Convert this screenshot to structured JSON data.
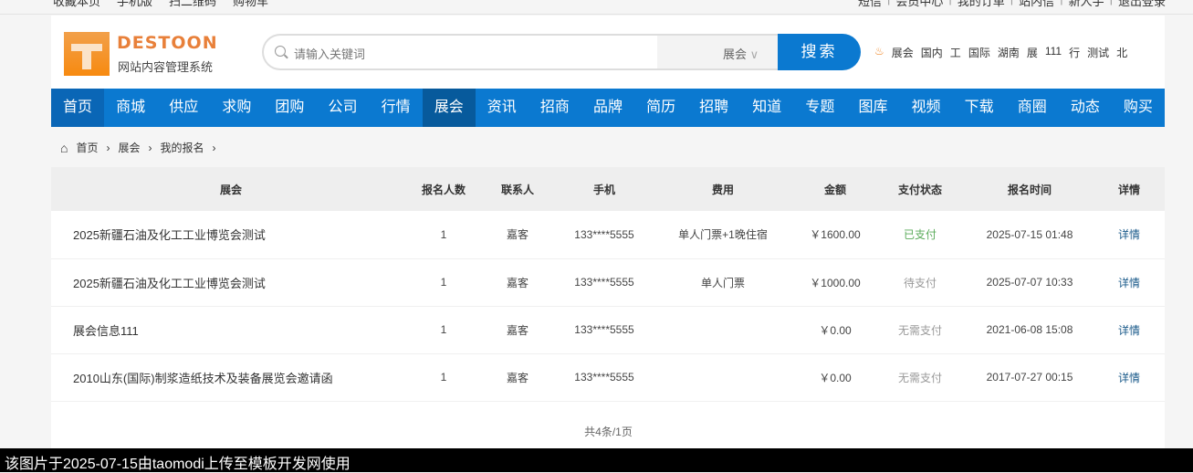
{
  "topbar": {
    "left": [
      "收藏本页",
      "手机版",
      "扫二维码",
      "购物车"
    ],
    "right": [
      "短信",
      "会员中心",
      "我的订单",
      "站内信",
      "新人手",
      "退出登录"
    ]
  },
  "header": {
    "logo_text": "DESTOON",
    "logo_sub": "网站内容管理系统",
    "search_placeholder": "请输入关键词",
    "search_module": "展会",
    "search_button": "搜索",
    "hot_words": [
      "展会",
      "国内",
      "工",
      "国际",
      "湖南",
      "展",
      "111",
      "行",
      "测试",
      "北"
    ]
  },
  "nav": [
    "首页",
    "商城",
    "供应",
    "求购",
    "团购",
    "公司",
    "行情",
    "展会",
    "资讯",
    "招商",
    "品牌",
    "简历",
    "招聘",
    "知道",
    "专题",
    "图库",
    "视频",
    "下载",
    "商圈",
    "动态",
    "购买"
  ],
  "nav_active": "展会",
  "breadcrumb": [
    "首页",
    "展会",
    "我的报名"
  ],
  "table": {
    "headers": [
      "展会",
      "报名人数",
      "联系人",
      "手机",
      "费用",
      "金额",
      "支付状态",
      "报名时间",
      "详情"
    ],
    "rows": [
      [
        "2025新疆石油及化工工业博览会测试",
        "1",
        "嘉客",
        "133****5555",
        "单人门票+1晚住宿",
        "￥1600.00",
        "已支付",
        "2025-07-15 01:48",
        "详情"
      ],
      [
        "2025新疆石油及化工工业博览会测试",
        "1",
        "嘉客",
        "133****5555",
        "单人门票",
        "￥1000.00",
        "待支付",
        "2025-07-07 10:33",
        "详情"
      ],
      [
        "展会信息111",
        "1",
        "嘉客",
        "133****5555",
        "",
        "￥0.00",
        "无需支付",
        "2021-06-08 15:08",
        "详情"
      ],
      [
        "2010山东(国际)制浆造纸技术及装备展览会邀请函",
        "1",
        "嘉客",
        "133****5555",
        "",
        "￥0.00",
        "无需支付",
        "2017-07-27 00:15",
        "详情"
      ]
    ]
  },
  "pager": "共4条/1页",
  "watermark": "该图片于2025-07-15由taomodi上传至模板开发网使用",
  "colors": {
    "nav": "#0b79d0",
    "nav_active": "#075a9c",
    "paid": "#5aab5a",
    "logo": "#f78a10"
  }
}
